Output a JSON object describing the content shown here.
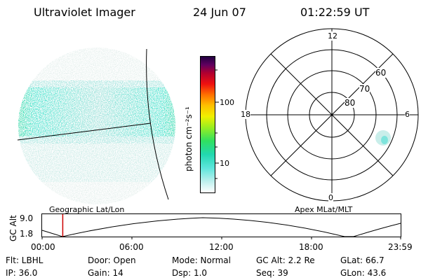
{
  "header": {
    "instrument": "Ultraviolet Imager",
    "date": "24 Jun 07",
    "time": "01:22:59 UT"
  },
  "colorbar": {
    "label": "photon cm⁻²s⁻¹",
    "ticks": [
      "100",
      "10"
    ]
  },
  "polar_plot": {
    "mlt_labels": {
      "top": "12",
      "left": "18",
      "right": "6",
      "bottom": "0"
    },
    "lat_labels": [
      "60",
      "70",
      "80"
    ]
  },
  "panel_labels": {
    "left": "Geographic Lat/Lon",
    "right": "Apex MLat/MLT"
  },
  "altitude_plot": {
    "ylabel": "GC Alt",
    "yticks": [
      "9.0",
      "1.8"
    ],
    "time_ticks": [
      "00:00",
      "06:00",
      "12:00",
      "18:00",
      "23:59"
    ],
    "current_time_fraction": 0.0576
  },
  "status": {
    "flt": "Flt: LBHL",
    "ip": "IP: 36.0",
    "door": "Door: Open",
    "gain": "Gain: 14",
    "mode": "Mode: Normal",
    "dsp": "Dsp:    1.0",
    "gc_alt": "GC Alt: 2.2 Re",
    "seq": "Seq: 39",
    "glat": "GLat:  66.7",
    "glon": "GLon:  43.6"
  },
  "colors": {
    "auroral_faint": "#b8e6e3",
    "auroral_mid": "#3ee8d0",
    "auroral_bright": "#1ed890",
    "time_marker": "#cc0000"
  }
}
